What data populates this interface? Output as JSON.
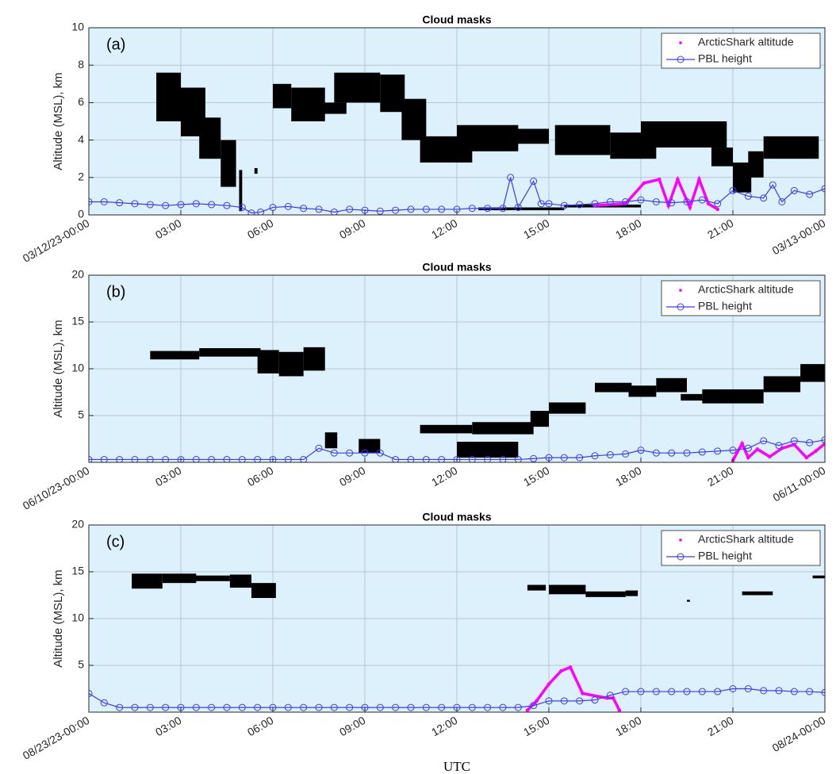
{
  "chart_data": [
    {
      "type": "line",
      "title": "Cloud masks",
      "annotation": "(a)",
      "ylabel": "Altitude (MSL), km",
      "xlim": [
        0,
        24
      ],
      "xticks": [
        {
          "value": 0,
          "label": "03/12/23-00:00"
        },
        {
          "value": 3,
          "label": "03:00"
        },
        {
          "value": 6,
          "label": "06:00"
        },
        {
          "value": 9,
          "label": "09:00"
        },
        {
          "value": 12,
          "label": "12:00"
        },
        {
          "value": 15,
          "label": "15:00"
        },
        {
          "value": 18,
          "label": "18:00"
        },
        {
          "value": 21,
          "label": "21:00"
        },
        {
          "value": 24,
          "label": "03/13-00:00"
        }
      ],
      "ylim": [
        0,
        10
      ],
      "yticks": [
        0,
        2,
        4,
        6,
        8,
        10
      ],
      "grid": true,
      "legend": "upper right",
      "background": "#dcf1fb",
      "cloud_mask": {
        "color": "#000000",
        "boxes": [
          [
            2.2,
            3.0,
            5.0,
            7.6
          ],
          [
            3.0,
            3.8,
            4.2,
            6.8
          ],
          [
            3.6,
            4.3,
            3.0,
            5.2
          ],
          [
            4.3,
            4.8,
            1.5,
            4.0
          ],
          [
            4.9,
            5.0,
            0.2,
            2.4
          ],
          [
            5.4,
            5.5,
            2.2,
            2.5
          ],
          [
            6.0,
            6.6,
            5.7,
            7.0
          ],
          [
            6.6,
            7.7,
            5.0,
            6.8
          ],
          [
            7.5,
            8.4,
            5.4,
            6.0
          ],
          [
            8.0,
            9.5,
            6.0,
            7.6
          ],
          [
            9.5,
            10.3,
            5.5,
            7.5
          ],
          [
            10.2,
            11.0,
            4.0,
            6.2
          ],
          [
            10.8,
            12.5,
            2.8,
            4.2
          ],
          [
            12.0,
            14.0,
            3.4,
            4.8
          ],
          [
            13.5,
            15.0,
            3.8,
            4.6
          ],
          [
            15.2,
            17.0,
            3.2,
            4.8
          ],
          [
            17.0,
            18.5,
            3.0,
            4.4
          ],
          [
            18.0,
            20.8,
            3.6,
            5.0
          ],
          [
            20.3,
            21.0,
            2.6,
            3.6
          ],
          [
            21.0,
            21.6,
            1.2,
            2.8
          ],
          [
            21.5,
            22.0,
            2.0,
            3.4
          ],
          [
            22.0,
            23.8,
            3.0,
            4.2
          ],
          [
            12.7,
            15.5,
            0.25,
            0.4
          ],
          [
            15.5,
            18.0,
            0.4,
            0.55
          ]
        ]
      },
      "series": [
        {
          "name": "ArcticShark altitude",
          "color": "#ff00ff",
          "marker": "dot",
          "x": [
            16.5,
            17.5,
            18.1,
            18.6,
            18.9,
            19.2,
            19.6,
            19.9,
            20.2,
            20.5
          ],
          "values": [
            0.5,
            0.6,
            1.7,
            1.9,
            0.5,
            1.9,
            0.4,
            1.9,
            0.6,
            0.3
          ]
        },
        {
          "name": "PBL height",
          "color": "#3b3bff",
          "marker": "circle",
          "x": [
            0,
            0.5,
            1,
            1.5,
            2,
            2.5,
            3,
            3.5,
            4,
            4.5,
            5,
            5.3,
            5.6,
            6,
            6.5,
            7,
            7.5,
            8,
            8.5,
            9,
            9.5,
            10,
            10.5,
            11,
            11.5,
            12,
            12.5,
            13,
            13.5,
            13.75,
            14,
            14.5,
            14.75,
            15,
            15.5,
            16,
            16.5,
            17,
            17.5,
            18,
            18.5,
            19,
            19.5,
            20,
            20.5,
            21,
            21.5,
            22,
            22.3,
            22.6,
            23,
            23.5,
            24
          ],
          "values": [
            0.7,
            0.7,
            0.65,
            0.6,
            0.55,
            0.5,
            0.55,
            0.6,
            0.55,
            0.5,
            0.4,
            0.1,
            0.15,
            0.4,
            0.45,
            0.35,
            0.3,
            0.15,
            0.3,
            0.25,
            0.2,
            0.25,
            0.3,
            0.3,
            0.3,
            0.3,
            0.35,
            0.35,
            0.35,
            2.0,
            0.4,
            1.8,
            0.6,
            0.6,
            0.5,
            0.55,
            0.6,
            0.7,
            0.7,
            0.8,
            0.7,
            0.65,
            0.7,
            0.8,
            0.6,
            1.3,
            1.0,
            0.9,
            1.6,
            0.7,
            1.3,
            1.1,
            1.4
          ]
        }
      ]
    },
    {
      "type": "line",
      "title": "Cloud masks",
      "annotation": "(b)",
      "ylabel": "Altitude (MSL), km",
      "xlim": [
        0,
        24
      ],
      "xticks": [
        {
          "value": 0,
          "label": "06/10/23-00:00"
        },
        {
          "value": 3,
          "label": "03:00"
        },
        {
          "value": 6,
          "label": "06:00"
        },
        {
          "value": 9,
          "label": "09:00"
        },
        {
          "value": 12,
          "label": "12:00"
        },
        {
          "value": 15,
          "label": "15:00"
        },
        {
          "value": 18,
          "label": "18:00"
        },
        {
          "value": 21,
          "label": "21:00"
        },
        {
          "value": 24,
          "label": "06/11-00:00"
        }
      ],
      "ylim": [
        0,
        20
      ],
      "yticks": [
        5,
        10,
        15,
        20
      ],
      "grid": true,
      "legend": "upper right",
      "background": "#dcf1fb",
      "cloud_mask": {
        "color": "#000000",
        "boxes": [
          [
            2.0,
            3.6,
            11.0,
            11.9
          ],
          [
            3.6,
            5.6,
            11.3,
            12.2
          ],
          [
            5.5,
            6.2,
            9.5,
            12.0
          ],
          [
            6.2,
            7.0,
            9.2,
            11.8
          ],
          [
            7.0,
            7.7,
            9.8,
            12.3
          ],
          [
            7.7,
            8.1,
            1.5,
            3.2
          ],
          [
            8.8,
            9.5,
            1.0,
            2.5
          ],
          [
            10.8,
            12.5,
            3.1,
            4.0
          ],
          [
            12.5,
            14.5,
            3.0,
            4.3
          ],
          [
            12.0,
            14.0,
            0.5,
            2.2
          ],
          [
            14.4,
            15.0,
            3.8,
            5.5
          ],
          [
            15.0,
            16.2,
            5.2,
            6.4
          ],
          [
            16.5,
            17.7,
            7.5,
            8.5
          ],
          [
            17.6,
            18.5,
            7.0,
            8.2
          ],
          [
            18.5,
            19.5,
            7.5,
            9.0
          ],
          [
            19.3,
            20.0,
            6.6,
            7.3
          ],
          [
            20.0,
            22.0,
            6.3,
            7.8
          ],
          [
            22.0,
            23.2,
            7.5,
            9.2
          ],
          [
            23.2,
            24.0,
            8.6,
            10.5
          ]
        ]
      },
      "series": [
        {
          "name": "ArcticShark altitude",
          "color": "#ff00ff",
          "marker": "dot",
          "x": [
            21,
            21.3,
            21.5,
            21.8,
            22.2,
            22.6,
            23,
            23.4,
            23.7,
            24
          ],
          "values": [
            0.2,
            2.0,
            0.5,
            1.4,
            0.6,
            1.5,
            1.9,
            0.5,
            1.2,
            2.0
          ]
        },
        {
          "name": "PBL height",
          "color": "#3b3bff",
          "marker": "circle",
          "x": [
            0,
            0.5,
            1,
            1.5,
            2,
            2.5,
            3,
            3.5,
            4,
            4.5,
            5,
            5.5,
            6,
            6.5,
            7,
            7.5,
            8,
            8.5,
            9,
            9.5,
            10,
            10.5,
            11,
            11.5,
            12,
            12.5,
            13,
            13.5,
            14,
            14.5,
            15,
            15.5,
            16,
            16.5,
            17,
            17.5,
            18,
            18.5,
            19,
            19.5,
            20,
            20.5,
            21,
            21.5,
            22,
            22.5,
            23,
            23.5,
            24
          ],
          "values": [
            0.3,
            0.3,
            0.3,
            0.3,
            0.3,
            0.3,
            0.3,
            0.3,
            0.3,
            0.3,
            0.3,
            0.3,
            0.3,
            0.3,
            0.3,
            1.5,
            1.0,
            1.0,
            1.0,
            1.0,
            0.3,
            0.3,
            0.3,
            0.3,
            0.3,
            0.3,
            0.3,
            0.3,
            0.3,
            0.4,
            0.5,
            0.5,
            0.5,
            0.7,
            0.8,
            0.9,
            1.3,
            1.0,
            1.0,
            1.0,
            1.1,
            1.2,
            1.3,
            1.5,
            2.3,
            1.8,
            2.3,
            2.1,
            2.4
          ]
        }
      ]
    },
    {
      "type": "line",
      "title": "Cloud masks",
      "annotation": "(c)",
      "ylabel": "Altitude (MSL), km",
      "xlabel": "UTC",
      "xlim": [
        0,
        24
      ],
      "xticks": [
        {
          "value": 0,
          "label": "08/23/23-00:00"
        },
        {
          "value": 3,
          "label": "03:00"
        },
        {
          "value": 6,
          "label": "06:00"
        },
        {
          "value": 9,
          "label": "09:00"
        },
        {
          "value": 12,
          "label": "12:00"
        },
        {
          "value": 15,
          "label": "15:00"
        },
        {
          "value": 18,
          "label": "18:00"
        },
        {
          "value": 21,
          "label": "21:00"
        },
        {
          "value": 24,
          "label": "08/24-00:00"
        }
      ],
      "ylim": [
        0,
        20
      ],
      "yticks": [
        5,
        10,
        15,
        20
      ],
      "grid": true,
      "legend": "upper right",
      "background": "#dcf1fb",
      "cloud_mask": {
        "color": "#000000",
        "boxes": [
          [
            1.4,
            2.4,
            13.2,
            14.8
          ],
          [
            2.4,
            3.5,
            13.8,
            14.8
          ],
          [
            3.2,
            4.6,
            14.0,
            14.6
          ],
          [
            4.6,
            5.3,
            13.3,
            14.7
          ],
          [
            5.3,
            6.1,
            12.2,
            13.8
          ],
          [
            14.3,
            14.9,
            13.0,
            13.6
          ],
          [
            15.0,
            16.2,
            12.6,
            13.6
          ],
          [
            16.2,
            17.5,
            12.3,
            12.9
          ],
          [
            17.5,
            17.9,
            12.4,
            13.0
          ],
          [
            21.3,
            22.3,
            12.5,
            12.9
          ],
          [
            23.6,
            24.0,
            14.3,
            14.6
          ],
          [
            19.5,
            19.6,
            11.8,
            12.0
          ]
        ]
      },
      "series": [
        {
          "name": "ArcticShark altitude",
          "color": "#ff00ff",
          "marker": "dot",
          "x": [
            14.3,
            14.6,
            15,
            15.4,
            15.7,
            16.1,
            16.9,
            17.1,
            17.3
          ],
          "values": [
            0.2,
            1.2,
            3.0,
            4.4,
            4.8,
            2.0,
            1.5,
            1.5,
            0.2
          ]
        },
        {
          "name": "PBL height",
          "color": "#3b3bff",
          "marker": "circle",
          "x": [
            0,
            0.5,
            1,
            1.5,
            2,
            2.5,
            3,
            3.5,
            4,
            4.5,
            5,
            5.5,
            6,
            6.5,
            7,
            7.5,
            8,
            8.5,
            9,
            9.5,
            10,
            10.5,
            11,
            11.5,
            12,
            12.5,
            13,
            13.5,
            14,
            14.5,
            15,
            15.5,
            16,
            16.5,
            17,
            17.5,
            18,
            18.5,
            19,
            19.5,
            20,
            20.5,
            21,
            21.5,
            22,
            22.5,
            23,
            23.5,
            24
          ],
          "values": [
            2.0,
            1.0,
            0.5,
            0.5,
            0.5,
            0.5,
            0.5,
            0.5,
            0.5,
            0.5,
            0.5,
            0.5,
            0.5,
            0.5,
            0.5,
            0.5,
            0.5,
            0.5,
            0.5,
            0.5,
            0.5,
            0.5,
            0.5,
            0.5,
            0.5,
            0.5,
            0.5,
            0.5,
            0.5,
            0.7,
            1.2,
            1.2,
            1.2,
            1.3,
            1.8,
            2.2,
            2.2,
            2.2,
            2.2,
            2.2,
            2.2,
            2.2,
            2.5,
            2.5,
            2.3,
            2.3,
            2.2,
            2.2,
            2.1
          ]
        }
      ]
    }
  ]
}
